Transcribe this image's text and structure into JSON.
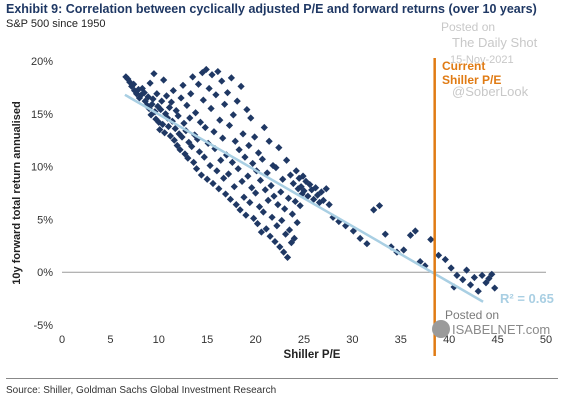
{
  "header": {
    "title": "Exhibit 9: Correlation between cyclically adjusted P/E and forward returns (over 10 years)",
    "subtitle": "S&P 500 since 1950"
  },
  "footer": {
    "source": "Source: Shiller, Goldman Sachs Global Investment Research"
  },
  "watermarks": {
    "posted_on_top": "Posted on",
    "daily_shot": "The Daily Shot",
    "date": "15-Nov-2021",
    "handle": "@SoberLook",
    "posted_on_bottom": "Posted on",
    "isabelnet": "ISABELNET.com"
  },
  "colors": {
    "points": "#1f3864",
    "trend": "#a9cfe3",
    "current_line": "#e07b14",
    "r2_label": "#a9cfe3",
    "title": "#1f3864"
  },
  "chart_data": {
    "type": "scatter",
    "title": "Exhibit 9: Correlation between cyclically adjusted P/E and forward returns (over 10 years)",
    "subtitle": "S&P 500 since 1950",
    "xlabel": "Shiller P/E",
    "ylabel": "10y forward total return annualised",
    "xlim": [
      0,
      50
    ],
    "ylim": [
      -5,
      20
    ],
    "x_ticks": [
      "0",
      "5",
      "10",
      "15",
      "20",
      "25",
      "30",
      "35",
      "40",
      "45",
      "50"
    ],
    "y_ticks": [
      "-5%",
      "0%",
      "5%",
      "10%",
      "15%",
      "20%"
    ],
    "grid": false,
    "current_shiller_pe": {
      "x": 38.5,
      "label_line1": "Current",
      "label_line2": "Shiller P/E"
    },
    "trendline": {
      "x": [
        6.5,
        43.5
      ],
      "y": [
        16.8,
        -2.8
      ]
    },
    "r_squared_label": "R² = 0.65",
    "points": [
      [
        6.6,
        18.5
      ],
      [
        6.8,
        18.3
      ],
      [
        7.0,
        18.0
      ],
      [
        7.2,
        17.6
      ],
      [
        7.4,
        17.8
      ],
      [
        7.5,
        17.2
      ],
      [
        7.7,
        16.9
      ],
      [
        7.9,
        17.3
      ],
      [
        8.0,
        16.5
      ],
      [
        8.2,
        16.8
      ],
      [
        8.3,
        17.4
      ],
      [
        8.5,
        17.0
      ],
      [
        8.6,
        16.2
      ],
      [
        8.8,
        15.8
      ],
      [
        8.9,
        16.6
      ],
      [
        9.0,
        15.5
      ],
      [
        9.1,
        17.9
      ],
      [
        9.2,
        14.9
      ],
      [
        9.3,
        15.9
      ],
      [
        9.4,
        16.4
      ],
      [
        9.5,
        18.8
      ],
      [
        9.6,
        15.2
      ],
      [
        9.7,
        14.5
      ],
      [
        9.8,
        16.9
      ],
      [
        9.9,
        15.7
      ],
      [
        10.0,
        14.2
      ],
      [
        10.1,
        13.5
      ],
      [
        10.2,
        15.4
      ],
      [
        10.3,
        16.2
      ],
      [
        10.4,
        14.0
      ],
      [
        10.5,
        18.2
      ],
      [
        10.6,
        13.2
      ],
      [
        10.7,
        15.0
      ],
      [
        10.8,
        16.7
      ],
      [
        10.9,
        14.6
      ],
      [
        11.0,
        13.8
      ],
      [
        11.1,
        15.6
      ],
      [
        11.2,
        12.9
      ],
      [
        11.3,
        16.1
      ],
      [
        11.4,
        14.3
      ],
      [
        11.5,
        17.2
      ],
      [
        11.6,
        12.5
      ],
      [
        11.7,
        13.6
      ],
      [
        11.8,
        15.3
      ],
      [
        11.9,
        12.0
      ],
      [
        12.0,
        14.8
      ],
      [
        12.1,
        13.1
      ],
      [
        12.2,
        11.6
      ],
      [
        12.3,
        16.5
      ],
      [
        12.4,
        12.8
      ],
      [
        12.5,
        17.7
      ],
      [
        12.6,
        14.1
      ],
      [
        12.7,
        11.2
      ],
      [
        12.8,
        13.4
      ],
      [
        12.9,
        15.8
      ],
      [
        13.0,
        10.8
      ],
      [
        13.1,
        12.3
      ],
      [
        13.2,
        14.6
      ],
      [
        13.3,
        16.9
      ],
      [
        13.4,
        11.9
      ],
      [
        13.5,
        18.5
      ],
      [
        13.6,
        10.4
      ],
      [
        13.7,
        13.0
      ],
      [
        13.8,
        15.1
      ],
      [
        13.9,
        9.8
      ],
      [
        14.0,
        12.6
      ],
      [
        14.1,
        17.8
      ],
      [
        14.2,
        11.4
      ],
      [
        14.3,
        14.2
      ],
      [
        14.4,
        9.2
      ],
      [
        14.5,
        18.9
      ],
      [
        14.6,
        16.3
      ],
      [
        14.7,
        10.9
      ],
      [
        14.8,
        13.7
      ],
      [
        14.9,
        19.2
      ],
      [
        15.0,
        8.8
      ],
      [
        15.1,
        12.2
      ],
      [
        15.2,
        17.4
      ],
      [
        15.3,
        10.1
      ],
      [
        15.4,
        15.5
      ],
      [
        15.5,
        18.7
      ],
      [
        15.6,
        8.4
      ],
      [
        15.7,
        13.3
      ],
      [
        15.8,
        11.7
      ],
      [
        15.9,
        16.8
      ],
      [
        16.0,
        9.6
      ],
      [
        16.1,
        19.0
      ],
      [
        16.2,
        7.9
      ],
      [
        16.3,
        14.4
      ],
      [
        16.4,
        10.6
      ],
      [
        16.5,
        18.1
      ],
      [
        16.6,
        12.7
      ],
      [
        16.7,
        8.9
      ],
      [
        16.8,
        15.9
      ],
      [
        16.9,
        7.4
      ],
      [
        17.0,
        11.1
      ],
      [
        17.1,
        17.0
      ],
      [
        17.2,
        9.3
      ],
      [
        17.3,
        13.9
      ],
      [
        17.4,
        6.9
      ],
      [
        17.5,
        18.4
      ],
      [
        17.6,
        10.4
      ],
      [
        17.7,
        14.9
      ],
      [
        17.8,
        8.1
      ],
      [
        17.9,
        12.4
      ],
      [
        18.0,
        6.4
      ],
      [
        18.1,
        16.2
      ],
      [
        18.2,
        9.8
      ],
      [
        18.3,
        11.6
      ],
      [
        18.4,
        5.9
      ],
      [
        18.5,
        17.6
      ],
      [
        18.6,
        8.6
      ],
      [
        18.7,
        13.1
      ],
      [
        18.8,
        7.1
      ],
      [
        18.9,
        10.9
      ],
      [
        19.0,
        5.4
      ],
      [
        19.1,
        15.4
      ],
      [
        19.2,
        9.1
      ],
      [
        19.3,
        12.0
      ],
      [
        19.4,
        6.6
      ],
      [
        19.5,
        14.6
      ],
      [
        19.6,
        8.0
      ],
      [
        19.7,
        10.3
      ],
      [
        19.8,
        5.1
      ],
      [
        19.9,
        12.8
      ],
      [
        20.0,
        7.5
      ],
      [
        20.1,
        9.6
      ],
      [
        20.2,
        4.6
      ],
      [
        20.3,
        11.3
      ],
      [
        20.4,
        6.2
      ],
      [
        20.5,
        8.7
      ],
      [
        20.6,
        3.8
      ],
      [
        20.7,
        10.7
      ],
      [
        20.8,
        5.7
      ],
      [
        20.9,
        13.7
      ],
      [
        21.0,
        7.8
      ],
      [
        21.1,
        4.1
      ],
      [
        21.2,
        9.4
      ],
      [
        21.3,
        6.8
      ],
      [
        21.4,
        12.4
      ],
      [
        21.5,
        3.4
      ],
      [
        21.6,
        8.2
      ],
      [
        21.7,
        5.2
      ],
      [
        21.8,
        10.1
      ],
      [
        21.9,
        7.2
      ],
      [
        22.0,
        2.9
      ],
      [
        22.1,
        9.9
      ],
      [
        22.2,
        4.4
      ],
      [
        22.3,
        6.4
      ],
      [
        22.4,
        11.8
      ],
      [
        22.5,
        2.4
      ],
      [
        22.6,
        7.6
      ],
      [
        22.7,
        4.9
      ],
      [
        22.8,
        8.8
      ],
      [
        22.9,
        1.9
      ],
      [
        23.0,
        6.0
      ],
      [
        23.1,
        3.6
      ],
      [
        23.2,
        10.6
      ],
      [
        23.3,
        1.4
      ],
      [
        23.4,
        7.0
      ],
      [
        23.5,
        4.0
      ],
      [
        23.6,
        9.2
      ],
      [
        23.7,
        2.8
      ],
      [
        23.8,
        5.5
      ],
      [
        23.9,
        8.4
      ],
      [
        24.0,
        3.2
      ],
      [
        24.1,
        6.7
      ],
      [
        24.2,
        9.6
      ],
      [
        24.3,
        4.7
      ],
      [
        24.4,
        7.9
      ],
      [
        24.5,
        8.9
      ],
      [
        24.6,
        6.3
      ],
      [
        24.7,
        8.1
      ],
      [
        24.8,
        7.4
      ],
      [
        24.9,
        9.1
      ],
      [
        25.0,
        7.7
      ],
      [
        25.2,
        8.6
      ],
      [
        25.4,
        7.2
      ],
      [
        25.6,
        8.3
      ],
      [
        25.8,
        7.8
      ],
      [
        26.0,
        6.9
      ],
      [
        26.2,
        8.0
      ],
      [
        26.4,
        7.3
      ],
      [
        26.6,
        6.6
      ],
      [
        26.8,
        7.6
      ],
      [
        27.0,
        6.8
      ],
      [
        27.3,
        7.9
      ],
      [
        27.6,
        6.4
      ],
      [
        28.0,
        5.2
      ],
      [
        28.6,
        4.8
      ],
      [
        29.3,
        4.4
      ],
      [
        30.1,
        3.9
      ],
      [
        30.8,
        3.2
      ],
      [
        31.5,
        2.7
      ],
      [
        32.2,
        5.9
      ],
      [
        32.8,
        6.3
      ],
      [
        33.4,
        3.6
      ],
      [
        34.0,
        2.4
      ],
      [
        34.6,
        1.9
      ],
      [
        35.3,
        2.1
      ],
      [
        36.0,
        3.5
      ],
      [
        36.5,
        3.9
      ],
      [
        37.0,
        1.0
      ],
      [
        37.5,
        0.6
      ],
      [
        38.1,
        3.1
      ],
      [
        38.9,
        1.6
      ],
      [
        39.6,
        1.2
      ],
      [
        40.2,
        0.4
      ],
      [
        40.8,
        -0.3
      ],
      [
        41.4,
        -0.7
      ],
      [
        41.8,
        0.2
      ],
      [
        42.2,
        -1.2
      ],
      [
        42.6,
        -0.5
      ],
      [
        43.0,
        -1.8
      ],
      [
        43.4,
        -0.3
      ],
      [
        43.8,
        -1.0
      ],
      [
        44.1,
        -0.6
      ],
      [
        44.4,
        -0.2
      ],
      [
        44.7,
        -1.5
      ],
      [
        40.5,
        -1.4
      ]
    ]
  }
}
